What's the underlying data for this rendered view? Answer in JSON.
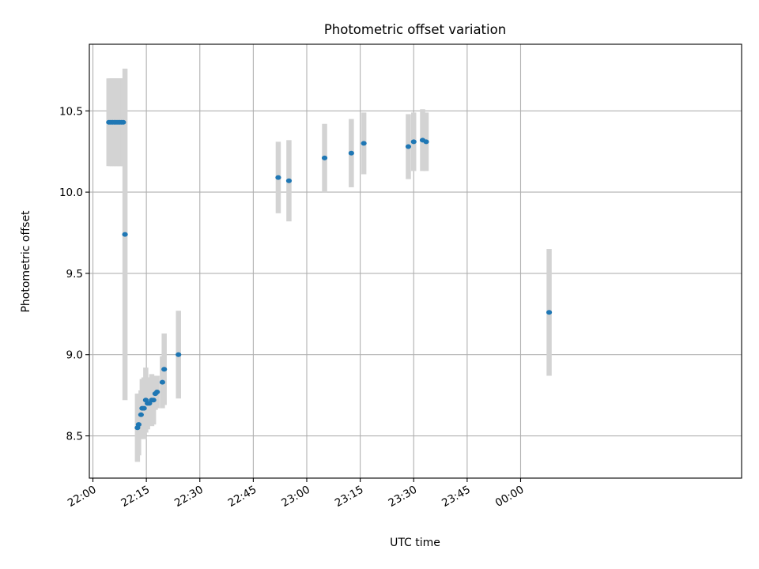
{
  "chart_data": {
    "type": "scatter",
    "title": "Photometric offset variation",
    "xlabel": "UTC time",
    "ylabel": "Photometric offset",
    "xlim": [
      "21:59",
      "01:02"
    ],
    "ylim": [
      8.24,
      10.91
    ],
    "grid": true,
    "x_ticks": [
      {
        "time": "22:00",
        "label": "22:00"
      },
      {
        "time": "22:15",
        "label": "22:15"
      },
      {
        "time": "22:30",
        "label": "22:30"
      },
      {
        "time": "22:45",
        "label": "22:45"
      },
      {
        "time": "23:00",
        "label": "23:00"
      },
      {
        "time": "23:15",
        "label": "23:15"
      },
      {
        "time": "23:30",
        "label": "23:30"
      },
      {
        "time": "23:45",
        "label": "23:45"
      },
      {
        "time": "00:00",
        "label": "00:00"
      }
    ],
    "y_ticks": [
      {
        "value": 8.5,
        "label": "8.5"
      },
      {
        "value": 9.0,
        "label": "9.0"
      },
      {
        "value": 9.5,
        "label": "9.5"
      },
      {
        "value": 10.0,
        "label": "10.0"
      },
      {
        "value": 10.5,
        "label": "10.5"
      }
    ],
    "colors": {
      "points": "#1f77b4",
      "errorbars": "#d3d3d3"
    },
    "points": [
      {
        "time": "22:04:30",
        "y": 10.43,
        "err": 0.27
      },
      {
        "time": "22:05:00",
        "y": 10.43,
        "err": 0.27
      },
      {
        "time": "22:05:30",
        "y": 10.43,
        "err": 0.27
      },
      {
        "time": "22:06:00",
        "y": 10.43,
        "err": 0.27
      },
      {
        "time": "22:06:30",
        "y": 10.43,
        "err": 0.27
      },
      {
        "time": "22:07:00",
        "y": 10.43,
        "err": 0.27
      },
      {
        "time": "22:07:30",
        "y": 10.43,
        "err": 0.27
      },
      {
        "time": "22:08:00",
        "y": 10.43,
        "err": 0.27
      },
      {
        "time": "22:08:30",
        "y": 10.43,
        "err": 0.27
      },
      {
        "time": "22:09:00",
        "y": 9.74,
        "err": 1.02
      },
      {
        "time": "22:12:30",
        "y": 8.55,
        "err": 0.21
      },
      {
        "time": "22:12:50",
        "y": 8.57,
        "err": 0.19
      },
      {
        "time": "22:13:30",
        "y": 8.63,
        "err": 0.15
      },
      {
        "time": "22:13:50",
        "y": 8.67,
        "err": 0.18
      },
      {
        "time": "22:14:20",
        "y": 8.67,
        "err": 0.19
      },
      {
        "time": "22:14:50",
        "y": 8.72,
        "err": 0.2
      },
      {
        "time": "22:15:20",
        "y": 8.7,
        "err": 0.16
      },
      {
        "time": "22:15:50",
        "y": 8.7,
        "err": 0.13
      },
      {
        "time": "22:16:30",
        "y": 8.72,
        "err": 0.16
      },
      {
        "time": "22:17:00",
        "y": 8.72,
        "err": 0.15
      },
      {
        "time": "22:17:30",
        "y": 8.76,
        "err": 0.1
      },
      {
        "time": "22:18:00",
        "y": 8.77,
        "err": 0.1
      },
      {
        "time": "22:19:30",
        "y": 8.83,
        "err": 0.16
      },
      {
        "time": "22:20:00",
        "y": 8.91,
        "err": 0.22
      },
      {
        "time": "22:24:00",
        "y": 9.0,
        "err": 0.27
      },
      {
        "time": "22:52:00",
        "y": 10.09,
        "err": 0.22
      },
      {
        "time": "22:55:00",
        "y": 10.07,
        "err": 0.25
      },
      {
        "time": "23:05:00",
        "y": 10.21,
        "err": 0.21
      },
      {
        "time": "23:12:30",
        "y": 10.24,
        "err": 0.21
      },
      {
        "time": "23:16:00",
        "y": 10.3,
        "err": 0.19
      },
      {
        "time": "23:28:30",
        "y": 10.28,
        "err": 0.2
      },
      {
        "time": "23:30:00",
        "y": 10.31,
        "err": 0.18
      },
      {
        "time": "23:32:30",
        "y": 10.32,
        "err": 0.19
      },
      {
        "time": "23:33:30",
        "y": 10.31,
        "err": 0.18
      },
      {
        "time": "00:08:00",
        "y": 9.26,
        "err": 0.39
      }
    ]
  }
}
